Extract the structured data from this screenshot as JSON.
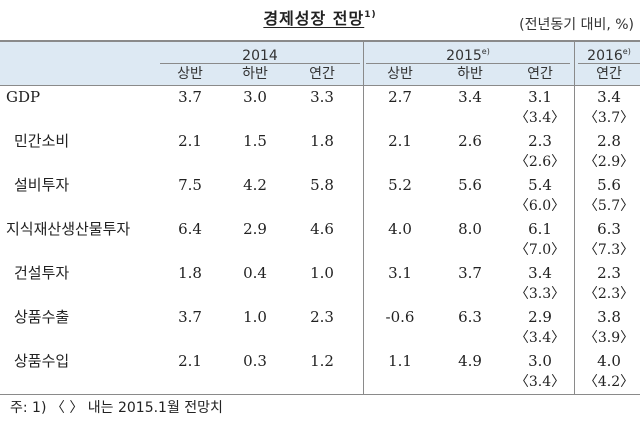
{
  "title": {
    "text": "경제성장 전망",
    "sup": "1)"
  },
  "unit": "(전년동기 대비, %)",
  "years": [
    {
      "label": "2014",
      "sup": ""
    },
    {
      "label": "2015",
      "sup": "e)"
    },
    {
      "label": "2016",
      "sup": "e)"
    }
  ],
  "subheaders": [
    "상반",
    "하반",
    "연간",
    "상반",
    "하반",
    "연간",
    "연간"
  ],
  "rows": [
    {
      "label": "GDP",
      "values": [
        "3.7",
        "3.0",
        "3.3",
        "2.7",
        "3.4",
        "3.1",
        "3.4"
      ],
      "prev": [
        "〈3.4〉",
        "〈3.7〉"
      ]
    },
    {
      "label": "민간소비",
      "values": [
        "2.1",
        "1.5",
        "1.8",
        "2.1",
        "2.6",
        "2.3",
        "2.8"
      ],
      "prev": [
        "〈2.6〉",
        "〈2.9〉"
      ]
    },
    {
      "label": "설비투자",
      "values": [
        "7.5",
        "4.2",
        "5.8",
        "5.2",
        "5.6",
        "5.4",
        "5.6"
      ],
      "prev": [
        "〈6.0〉",
        "〈5.7〉"
      ]
    },
    {
      "label": "지식재산생산물투자",
      "values": [
        "6.4",
        "2.9",
        "4.6",
        "4.0",
        "8.0",
        "6.1",
        "6.3"
      ],
      "prev": [
        "〈7.0〉",
        "〈7.3〉"
      ]
    },
    {
      "label": "건설투자",
      "values": [
        "1.8",
        "0.4",
        "1.0",
        "3.1",
        "3.7",
        "3.4",
        "2.3"
      ],
      "prev": [
        "〈3.3〉",
        "〈2.3〉"
      ]
    },
    {
      "label": "상품수출",
      "values": [
        "3.7",
        "1.0",
        "2.3",
        "-0.6",
        "6.3",
        "2.9",
        "3.8"
      ],
      "prev": [
        "〈3.4〉",
        "〈3.9〉"
      ]
    },
    {
      "label": "상품수입",
      "values": [
        "2.1",
        "0.3",
        "1.2",
        "1.1",
        "4.9",
        "3.0",
        "4.0"
      ],
      "prev": [
        "〈3.4〉",
        "〈4.2〉"
      ]
    }
  ],
  "note": "주: 1) 〈 〉 내는 2015.1월 전망치"
}
